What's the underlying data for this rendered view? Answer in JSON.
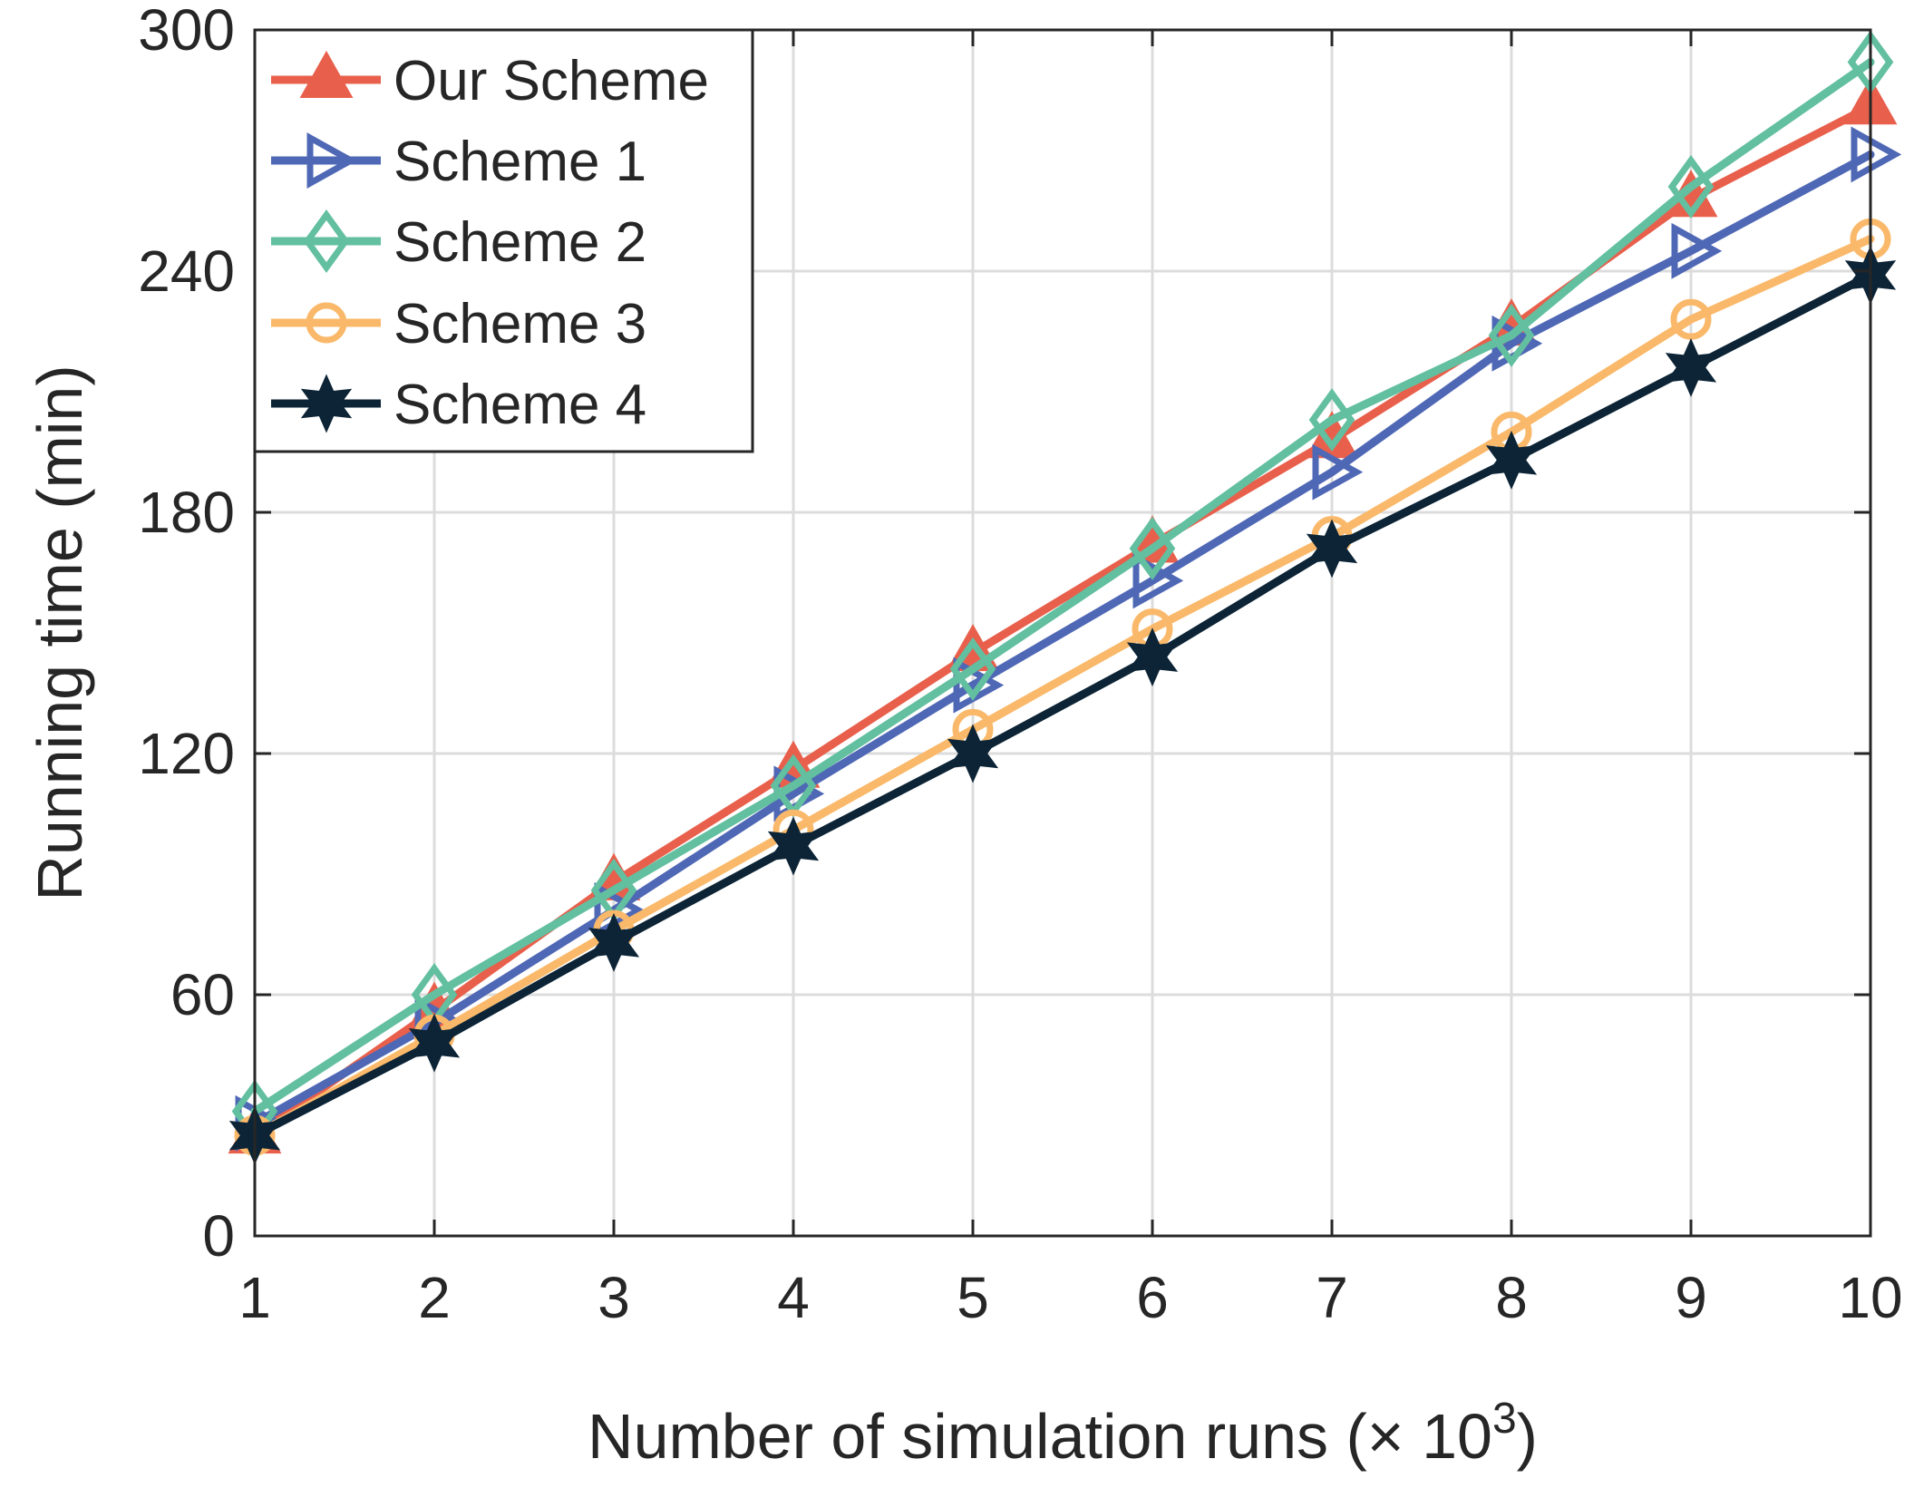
{
  "chart_data": {
    "type": "line",
    "title": "",
    "xlabel": "Number of simulation runs (× 10",
    "xlabel_superscript": "3",
    "xlabel_close": ")",
    "ylabel": "Running time (min)",
    "x": [
      1,
      2,
      3,
      4,
      5,
      6,
      7,
      8,
      9,
      10
    ],
    "xlim": [
      1,
      10
    ],
    "ylim": [
      0,
      300
    ],
    "xticks": [
      1,
      2,
      3,
      4,
      5,
      6,
      7,
      8,
      9,
      10
    ],
    "yticks": [
      0,
      60,
      120,
      180,
      240,
      300
    ],
    "grid": true,
    "legend_position": "top-left",
    "series": [
      {
        "name": "Our Scheme",
        "color": "#E8604C",
        "marker": "triangle-up",
        "values": [
          25,
          56,
          88,
          116,
          145,
          172,
          198,
          226,
          258,
          281
        ]
      },
      {
        "name": "Scheme 1",
        "color": "#4F68B5",
        "marker": "triangle-right",
        "values": [
          28,
          53,
          81,
          110,
          137,
          163,
          190,
          222,
          245,
          269
        ]
      },
      {
        "name": "Scheme 2",
        "color": "#62BFA0",
        "marker": "diamond",
        "values": [
          31,
          60,
          86,
          112,
          141,
          171,
          203,
          224,
          261,
          292
        ]
      },
      {
        "name": "Scheme 3",
        "color": "#FAB96A",
        "marker": "circle",
        "values": [
          25,
          50,
          76,
          101,
          126,
          151,
          174,
          200,
          228,
          248
        ]
      },
      {
        "name": "Scheme 4",
        "color": "#0C2436",
        "marker": "hexagram",
        "values": [
          25,
          48,
          73,
          97,
          120,
          144,
          171,
          193,
          216,
          239
        ]
      }
    ]
  }
}
